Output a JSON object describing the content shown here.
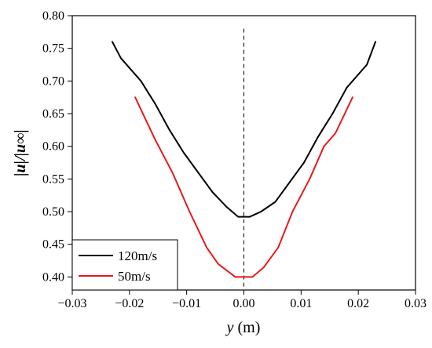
{
  "chart_data": {
    "type": "line",
    "xlabel_symbol": "y",
    "xlabel_unit": " (m)",
    "ylabel": "|u|/|u∞|",
    "xlim": [
      -0.03,
      0.03
    ],
    "ylim": [
      0.38,
      0.8
    ],
    "x_ticks": [
      "−0.03",
      "−0.02",
      "−0.01",
      "0.00",
      "0.01",
      "0.02",
      "0.03"
    ],
    "y_ticks": [
      "0.40",
      "0.45",
      "0.50",
      "0.55",
      "0.60",
      "0.65",
      "0.70",
      "0.75",
      "0.80"
    ],
    "x_tick_values": [
      -0.03,
      -0.02,
      -0.01,
      0.0,
      0.01,
      0.02,
      0.03
    ],
    "y_tick_values": [
      0.4,
      0.45,
      0.5,
      0.55,
      0.6,
      0.65,
      0.7,
      0.75,
      0.8
    ],
    "reference_line_x": 0.0,
    "legend_position": "bottom-left",
    "series": [
      {
        "name": "120m/s",
        "color": "#000000",
        "x": [
          -0.023,
          -0.0215,
          -0.018,
          -0.0155,
          -0.013,
          -0.0105,
          -0.008,
          -0.0055,
          -0.003,
          -0.001,
          0.001,
          0.003,
          0.0055,
          0.008,
          0.0105,
          0.013,
          0.0155,
          0.018,
          0.0215,
          0.023
        ],
        "y": [
          0.76,
          0.735,
          0.7,
          0.665,
          0.625,
          0.59,
          0.56,
          0.53,
          0.507,
          0.492,
          0.492,
          0.5,
          0.515,
          0.545,
          0.575,
          0.615,
          0.65,
          0.69,
          0.725,
          0.76
        ]
      },
      {
        "name": "50m/s",
        "color": "#e8191c",
        "x": [
          -0.019,
          -0.0155,
          -0.0125,
          -0.0095,
          -0.0065,
          -0.0045,
          -0.0015,
          0.0015,
          0.0035,
          0.006,
          0.0085,
          0.0115,
          0.014,
          0.016,
          0.019
        ],
        "y": [
          0.675,
          0.61,
          0.56,
          0.5,
          0.445,
          0.42,
          0.4,
          0.4,
          0.415,
          0.445,
          0.5,
          0.55,
          0.6,
          0.62,
          0.675
        ]
      }
    ]
  }
}
